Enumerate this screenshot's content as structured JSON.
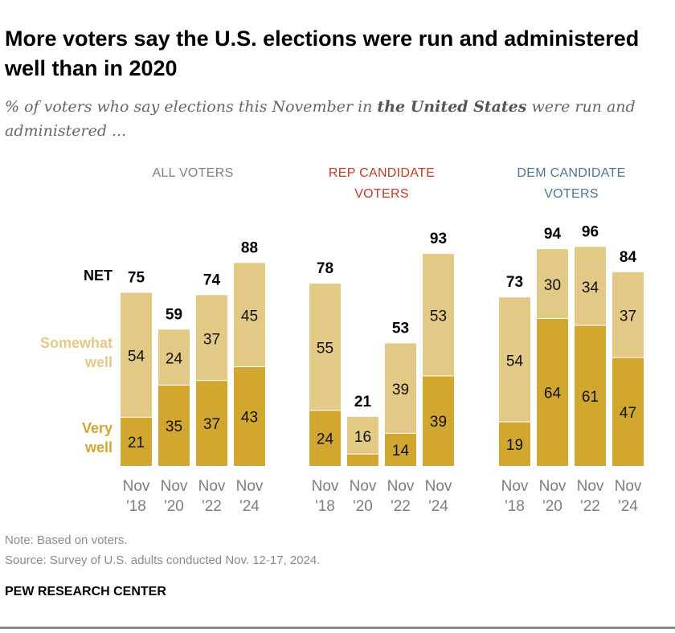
{
  "title": "More voters say the U.S. elections were run and administered well than in 2020",
  "subtitle": {
    "pre": "% of voters who say elections this November in ",
    "bold": "the United States",
    "post": " were run and administered ..."
  },
  "note": "Note: Based on voters.",
  "source": "Source: Survey of U.S. adults conducted Nov. 12-17, 2024.",
  "brand": "PEW RESEARCH CENTER",
  "chart_data": {
    "type": "stacked-bar",
    "categories": [
      "Nov '18",
      "Nov '20",
      "Nov '22",
      "Nov '24"
    ],
    "legend": {
      "net": "NET",
      "somewhat": "Somewhat well",
      "very": "Very well"
    },
    "colors": {
      "very": "#D2A72F",
      "somewhat": "#E3C986"
    },
    "groups": [
      {
        "name": "ALL VOTERS",
        "color": "#808080",
        "very": [
          21,
          35,
          37,
          43
        ],
        "somewhat": [
          54,
          24,
          37,
          45
        ],
        "net": [
          75,
          59,
          74,
          88
        ]
      },
      {
        "name": "REP CANDIDATE VOTERS",
        "color": "#BF3B2C",
        "very": [
          24,
          5,
          14,
          39
        ],
        "somewhat": [
          55,
          16,
          39,
          53
        ],
        "net": [
          78,
          21,
          53,
          93
        ]
      },
      {
        "name": "DEM CANDIDATE VOTERS",
        "color": "#4F7494",
        "very": [
          19,
          64,
          61,
          47
        ],
        "somewhat": [
          54,
          30,
          34,
          37
        ],
        "net": [
          73,
          94,
          96,
          84
        ]
      }
    ]
  }
}
